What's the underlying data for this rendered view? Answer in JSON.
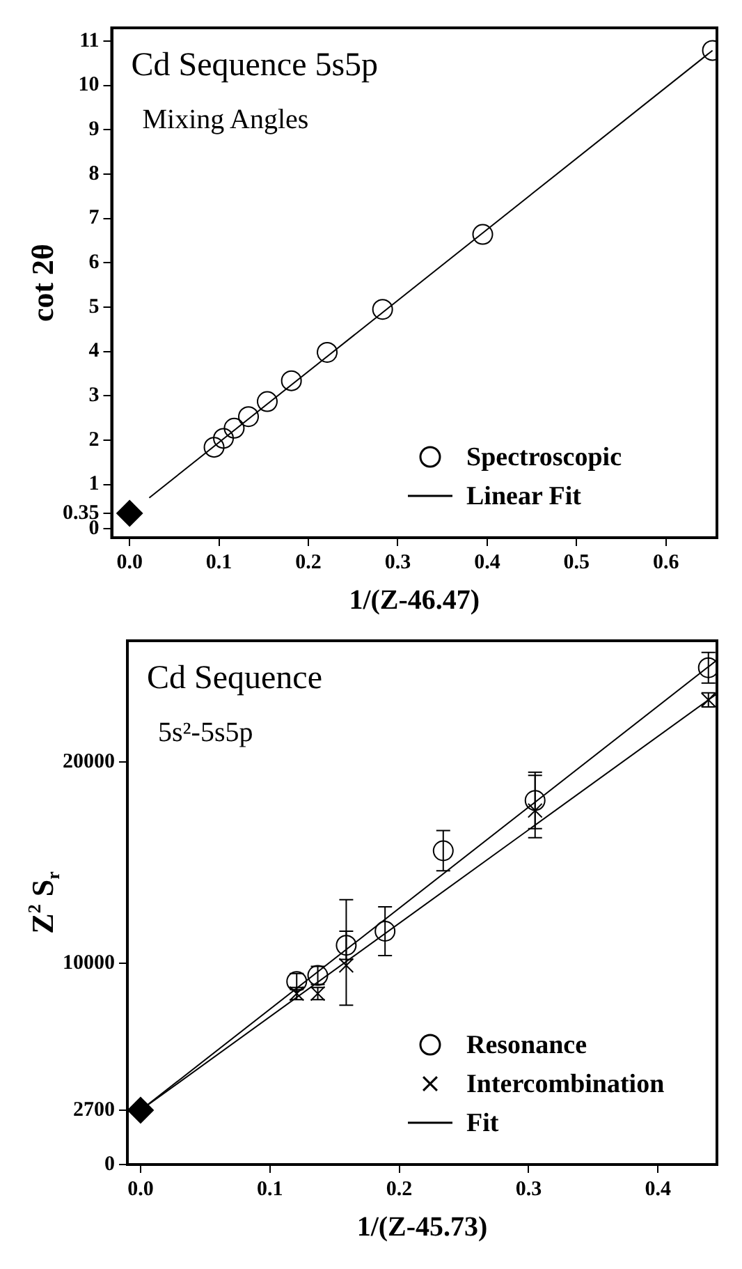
{
  "chart_data": [
    {
      "type": "scatter",
      "title": "Cd Sequence 5s5p",
      "subtitle": "Mixing Angles",
      "xlabel": "1/(Z-46.47)",
      "ylabel": "cot 2θ",
      "xlim": [
        -0.02,
        0.657
      ],
      "ylim": [
        -0.2,
        11.3
      ],
      "xticks": [
        {
          "value": 0,
          "label": "0.0"
        },
        0.1,
        0.2,
        0.3,
        0.4,
        0.5,
        0.6
      ],
      "yticks": [
        0,
        {
          "value": 0.35,
          "label": "0.35"
        },
        1,
        2,
        3,
        4,
        5,
        6,
        7,
        8,
        9,
        10,
        11
      ],
      "legend": "bottom right",
      "series": [
        {
          "name": "Spectroscopic",
          "type": "scatter",
          "marker": "circle",
          "color": "#000000",
          "x": [
            0.0945,
            0.105,
            0.117,
            0.133,
            0.154,
            0.181,
            0.221,
            0.283,
            0.395,
            0.652
          ],
          "values": [
            1.84,
            2.04,
            2.27,
            2.53,
            2.87,
            3.34,
            3.98,
            4.95,
            6.64,
            10.79
          ]
        },
        {
          "name": "Linear Fit",
          "type": "line",
          "marker": "none",
          "color": "#000000",
          "x": [
            0.022,
            0.652
          ],
          "values": [
            0.7,
            10.79
          ]
        },
        {
          "type": "scatter",
          "marker": "diamond",
          "color": "#000000",
          "x": [
            0
          ],
          "values": [
            0.35
          ]
        }
      ]
    },
    {
      "type": "scatter",
      "title": "Cd Sequence",
      "subtitle": "5s²-5s5p",
      "xlabel": "1/(Z-45.73)",
      "ylabel": "Z$^{2}$ S$_{r}$",
      "xlim": [
        -0.0102,
        0.4456
      ],
      "ylim": [
        0,
        26040
      ],
      "xticks": [
        {
          "value": 0,
          "label": "0.0"
        },
        0.1,
        0.2,
        0.3,
        0.4
      ],
      "yticks": [
        0,
        2700,
        10000,
        20000
      ],
      "legend": "bottom right",
      "series": [
        {
          "name": "Resonance",
          "type": "scatter",
          "marker": "circle",
          "color": "#000000",
          "x": [
            0.1207,
            0.137,
            0.159,
            0.189,
            0.234,
            0.305,
            0.439
          ],
          "values": [
            9100,
            9400,
            10900,
            11600,
            15600,
            18100,
            24700
          ],
          "errors": [
            400,
            450,
            700,
            1210,
            1000,
            1400,
            760
          ]
        },
        {
          "name": "Intercombination",
          "type": "scatter",
          "marker": "cross",
          "color": "#000000",
          "x": [
            0.1207,
            0.137,
            0.159,
            0.305,
            0.439
          ],
          "values": [
            8500,
            8500,
            9900,
            17600,
            23100
          ],
          "errors": [
            300,
            300,
            [
              7920,
              13170
            ],
            [
              16250,
              19350
            ],
            350
          ]
        },
        {
          "name": "Fit",
          "type": "line",
          "marker": "none",
          "color": "#000000",
          "x": [
            0,
            0.445
          ],
          "values": [
            2700,
            25050
          ]
        },
        {
          "type": "line",
          "marker": "none",
          "color": "#000000",
          "x": [
            0,
            0.445
          ],
          "values": [
            2700,
            23380
          ]
        },
        {
          "type": "scatter",
          "marker": "diamond",
          "color": "#000000",
          "x": [
            0
          ],
          "values": [
            2700
          ]
        }
      ]
    }
  ]
}
